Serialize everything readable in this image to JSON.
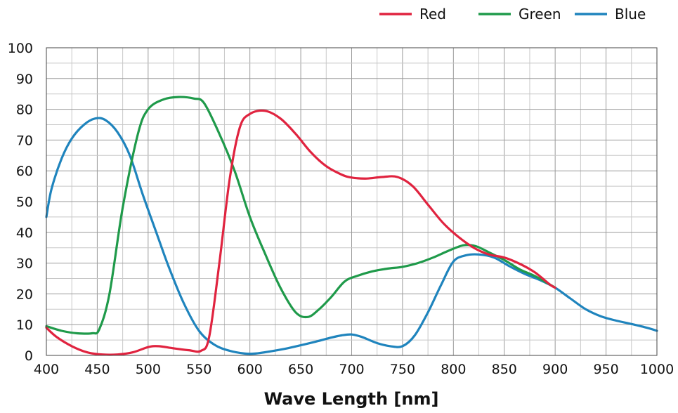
{
  "chart_data": {
    "type": "line",
    "xlabel": "Wave Length [nm]",
    "ylabel": "",
    "xlim": [
      400,
      1000
    ],
    "ylim": [
      0,
      100
    ],
    "x_ticks": [
      "400",
      "450",
      "500",
      "550",
      "600",
      "650",
      "700",
      "750",
      "800",
      "850",
      "900",
      "950",
      "1000"
    ],
    "y_ticks": [
      "0",
      "10",
      "20",
      "30",
      "40",
      "50",
      "60",
      "70",
      "80",
      "90",
      "100"
    ],
    "grid": true,
    "legend_position": "top-right",
    "series": [
      {
        "name": "Red",
        "color": "#e0233f",
        "points": [
          [
            400,
            9
          ],
          [
            410,
            6
          ],
          [
            425,
            3
          ],
          [
            440,
            1
          ],
          [
            455,
            0.3
          ],
          [
            470,
            0.3
          ],
          [
            485,
            1
          ],
          [
            500,
            2.7
          ],
          [
            510,
            3
          ],
          [
            525,
            2.3
          ],
          [
            540,
            1.7
          ],
          [
            552,
            1.5
          ],
          [
            560,
            6
          ],
          [
            570,
            30
          ],
          [
            580,
            57
          ],
          [
            590,
            74
          ],
          [
            600,
            78.5
          ],
          [
            615,
            79.5
          ],
          [
            630,
            77
          ],
          [
            645,
            72
          ],
          [
            660,
            66
          ],
          [
            675,
            61.5
          ],
          [
            690,
            58.8
          ],
          [
            700,
            57.8
          ],
          [
            715,
            57.5
          ],
          [
            730,
            58
          ],
          [
            745,
            58
          ],
          [
            760,
            55
          ],
          [
            775,
            49
          ],
          [
            790,
            43
          ],
          [
            805,
            38.5
          ],
          [
            820,
            35
          ],
          [
            835,
            32.8
          ],
          [
            850,
            31.8
          ],
          [
            865,
            29.8
          ],
          [
            880,
            27
          ],
          [
            895,
            23
          ],
          [
            900,
            22
          ]
        ]
      },
      {
        "name": "Green",
        "color": "#1f9a4a",
        "points": [
          [
            400,
            9.5
          ],
          [
            415,
            8
          ],
          [
            430,
            7.2
          ],
          [
            445,
            7.2
          ],
          [
            452,
            8.5
          ],
          [
            462,
            20
          ],
          [
            475,
            48
          ],
          [
            490,
            72
          ],
          [
            500,
            80
          ],
          [
            515,
            83.2
          ],
          [
            530,
            84
          ],
          [
            545,
            83.5
          ],
          [
            555,
            82
          ],
          [
            570,
            72
          ],
          [
            585,
            60
          ],
          [
            600,
            45
          ],
          [
            615,
            33
          ],
          [
            630,
            22
          ],
          [
            645,
            14
          ],
          [
            657,
            12.5
          ],
          [
            668,
            15
          ],
          [
            680,
            19
          ],
          [
            693,
            24
          ],
          [
            705,
            25.8
          ],
          [
            720,
            27.3
          ],
          [
            735,
            28.2
          ],
          [
            750,
            28.8
          ],
          [
            765,
            30
          ],
          [
            780,
            31.8
          ],
          [
            795,
            34
          ],
          [
            810,
            35.8
          ],
          [
            822,
            35.5
          ],
          [
            835,
            33.5
          ],
          [
            850,
            31
          ],
          [
            865,
            28
          ],
          [
            880,
            25.8
          ],
          [
            895,
            23
          ],
          [
            900,
            22
          ]
        ]
      },
      {
        "name": "Blue",
        "color": "#1f84bd",
        "points": [
          [
            400,
            45
          ],
          [
            405,
            54
          ],
          [
            415,
            64
          ],
          [
            425,
            70.5
          ],
          [
            437,
            75
          ],
          [
            448,
            77
          ],
          [
            458,
            76.5
          ],
          [
            470,
            72.5
          ],
          [
            482,
            65
          ],
          [
            495,
            52
          ],
          [
            508,
            40
          ],
          [
            520,
            29
          ],
          [
            535,
            17
          ],
          [
            550,
            8
          ],
          [
            565,
            3.5
          ],
          [
            580,
            1.5
          ],
          [
            595,
            0.6
          ],
          [
            605,
            0.6
          ],
          [
            620,
            1.3
          ],
          [
            635,
            2.2
          ],
          [
            650,
            3.3
          ],
          [
            665,
            4.5
          ],
          [
            680,
            5.8
          ],
          [
            690,
            6.5
          ],
          [
            700,
            6.8
          ],
          [
            710,
            6
          ],
          [
            725,
            4
          ],
          [
            738,
            3
          ],
          [
            750,
            3
          ],
          [
            762,
            6.5
          ],
          [
            775,
            14
          ],
          [
            788,
            23
          ],
          [
            800,
            30.5
          ],
          [
            812,
            32.5
          ],
          [
            825,
            32.8
          ],
          [
            840,
            31.8
          ],
          [
            855,
            29
          ],
          [
            870,
            26.5
          ],
          [
            885,
            24.5
          ],
          [
            900,
            22
          ],
          [
            915,
            18.5
          ],
          [
            930,
            15
          ],
          [
            945,
            12.7
          ],
          [
            960,
            11.3
          ],
          [
            975,
            10.2
          ],
          [
            990,
            9
          ],
          [
            1000,
            8
          ]
        ]
      }
    ]
  }
}
